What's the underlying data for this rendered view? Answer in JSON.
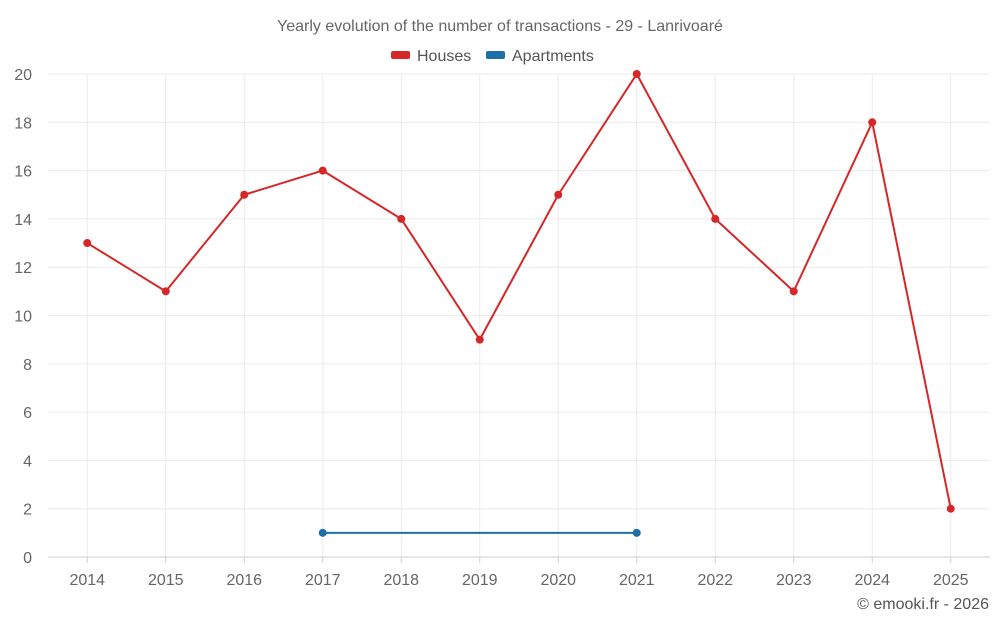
{
  "chart_data": {
    "type": "line",
    "title": "Yearly evolution of the number of transactions - 29 - Lanrivoaré",
    "categories": [
      "2014",
      "2015",
      "2016",
      "2017",
      "2018",
      "2019",
      "2020",
      "2021",
      "2022",
      "2023",
      "2024",
      "2025"
    ],
    "series": [
      {
        "name": "Houses",
        "color": "#d62728",
        "values": [
          13,
          11,
          15,
          16,
          14,
          9,
          15,
          20,
          14,
          11,
          18,
          2
        ]
      },
      {
        "name": "Apartments",
        "color": "#1f6fa8",
        "values": [
          null,
          null,
          null,
          1,
          null,
          null,
          null,
          1,
          null,
          null,
          null,
          null
        ]
      }
    ],
    "ylim": [
      0,
      20
    ],
    "yticks": [
      0,
      2,
      4,
      6,
      8,
      10,
      12,
      14,
      16,
      18,
      20
    ],
    "xlabel": "",
    "ylabel": "",
    "grid": true,
    "legend": "top-center"
  },
  "credit": "© emooki.fr - 2026"
}
